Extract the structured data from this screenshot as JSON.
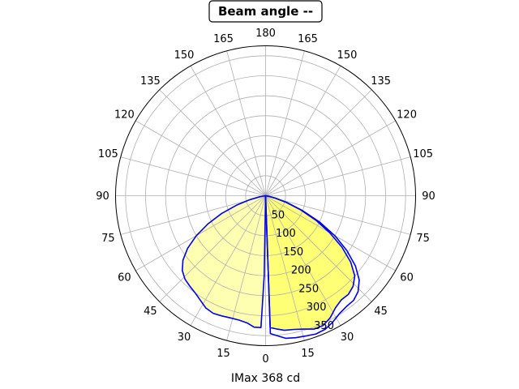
{
  "chart_data": {
    "type": "polar-line",
    "title": "Beam angle --",
    "xlabel": "IMax 368 cd",
    "angle_tick_labels": [
      "180",
      "165",
      "150",
      "135",
      "120",
      "105",
      "90",
      "75",
      "60",
      "45",
      "30",
      "15",
      "0",
      "15",
      "30",
      "45",
      "60",
      "75",
      "90",
      "105",
      "120",
      "135",
      "150",
      "165"
    ],
    "radial_tick_labels": [
      "50",
      "100",
      "150",
      "200",
      "250",
      "300",
      "350"
    ],
    "radial_tick_values": [
      50,
      100,
      150,
      200,
      250,
      300,
      350
    ],
    "rlim": [
      0,
      375
    ],
    "grid": true,
    "colors": {
      "curve": "#0000ee",
      "fill_left": "#ffffaa",
      "fill_right": "#ffff66",
      "grid": "#b0b0b0"
    },
    "series": [
      {
        "points": [
          {
            "angle": 0,
            "r": 0
          },
          {
            "angle": 2,
            "r": 330
          },
          {
            "angle": 5,
            "r": 335
          },
          {
            "angle": 8,
            "r": 340
          },
          {
            "angle": 12,
            "r": 342
          },
          {
            "angle": 16,
            "r": 347
          },
          {
            "angle": 20,
            "r": 355
          },
          {
            "angle": 24,
            "r": 355
          },
          {
            "angle": 28,
            "r": 345
          },
          {
            "angle": 32,
            "r": 330
          },
          {
            "angle": 36,
            "r": 322
          },
          {
            "angle": 40,
            "r": 322
          },
          {
            "angle": 44,
            "r": 315
          },
          {
            "angle": 48,
            "r": 300
          },
          {
            "angle": 52,
            "r": 270
          },
          {
            "angle": 56,
            "r": 230
          },
          {
            "angle": 60,
            "r": 185
          },
          {
            "angle": 64,
            "r": 140
          },
          {
            "angle": 68,
            "r": 95
          },
          {
            "angle": 72,
            "r": 55
          },
          {
            "angle": 76,
            "r": 25
          },
          {
            "angle": 80,
            "r": 8
          },
          {
            "angle": 84,
            "r": 0
          }
        ]
      },
      {
        "points": [
          {
            "angle": 0,
            "r": 0
          },
          {
            "angle": 2,
            "r": 345
          },
          {
            "angle": 5,
            "r": 352
          },
          {
            "angle": 8,
            "r": 360
          },
          {
            "angle": 12,
            "r": 363
          },
          {
            "angle": 16,
            "r": 365
          },
          {
            "angle": 20,
            "r": 368
          },
          {
            "angle": 24,
            "r": 366
          },
          {
            "angle": 28,
            "r": 358
          },
          {
            "angle": 32,
            "r": 348
          },
          {
            "angle": 36,
            "r": 343
          },
          {
            "angle": 40,
            "r": 342
          },
          {
            "angle": 44,
            "r": 333
          },
          {
            "angle": 48,
            "r": 315
          },
          {
            "angle": 52,
            "r": 285
          },
          {
            "angle": 56,
            "r": 245
          },
          {
            "angle": 60,
            "r": 200
          },
          {
            "angle": 64,
            "r": 150
          },
          {
            "angle": 68,
            "r": 100
          },
          {
            "angle": 72,
            "r": 58
          },
          {
            "angle": 76,
            "r": 26
          },
          {
            "angle": 80,
            "r": 8
          },
          {
            "angle": 84,
            "r": 0
          }
        ]
      },
      {
        "points": [
          {
            "angle": 0,
            "r": 0
          },
          {
            "angle": -1,
            "r": 200
          },
          {
            "angle": -2,
            "r": 330
          },
          {
            "angle": -5,
            "r": 330
          },
          {
            "angle": -8,
            "r": 322
          },
          {
            "angle": -12,
            "r": 318
          },
          {
            "angle": -16,
            "r": 318
          },
          {
            "angle": -20,
            "r": 320
          },
          {
            "angle": -24,
            "r": 322
          },
          {
            "angle": -28,
            "r": 318
          },
          {
            "angle": -32,
            "r": 308
          },
          {
            "angle": -36,
            "r": 300
          },
          {
            "angle": -40,
            "r": 295
          },
          {
            "angle": -44,
            "r": 290
          },
          {
            "angle": -48,
            "r": 280
          },
          {
            "angle": -52,
            "r": 262
          },
          {
            "angle": -56,
            "r": 235
          },
          {
            "angle": -60,
            "r": 200
          },
          {
            "angle": -64,
            "r": 160
          },
          {
            "angle": -68,
            "r": 118
          },
          {
            "angle": -72,
            "r": 75
          },
          {
            "angle": -76,
            "r": 40
          },
          {
            "angle": -80,
            "r": 14
          },
          {
            "angle": -84,
            "r": 0
          }
        ]
      }
    ]
  }
}
